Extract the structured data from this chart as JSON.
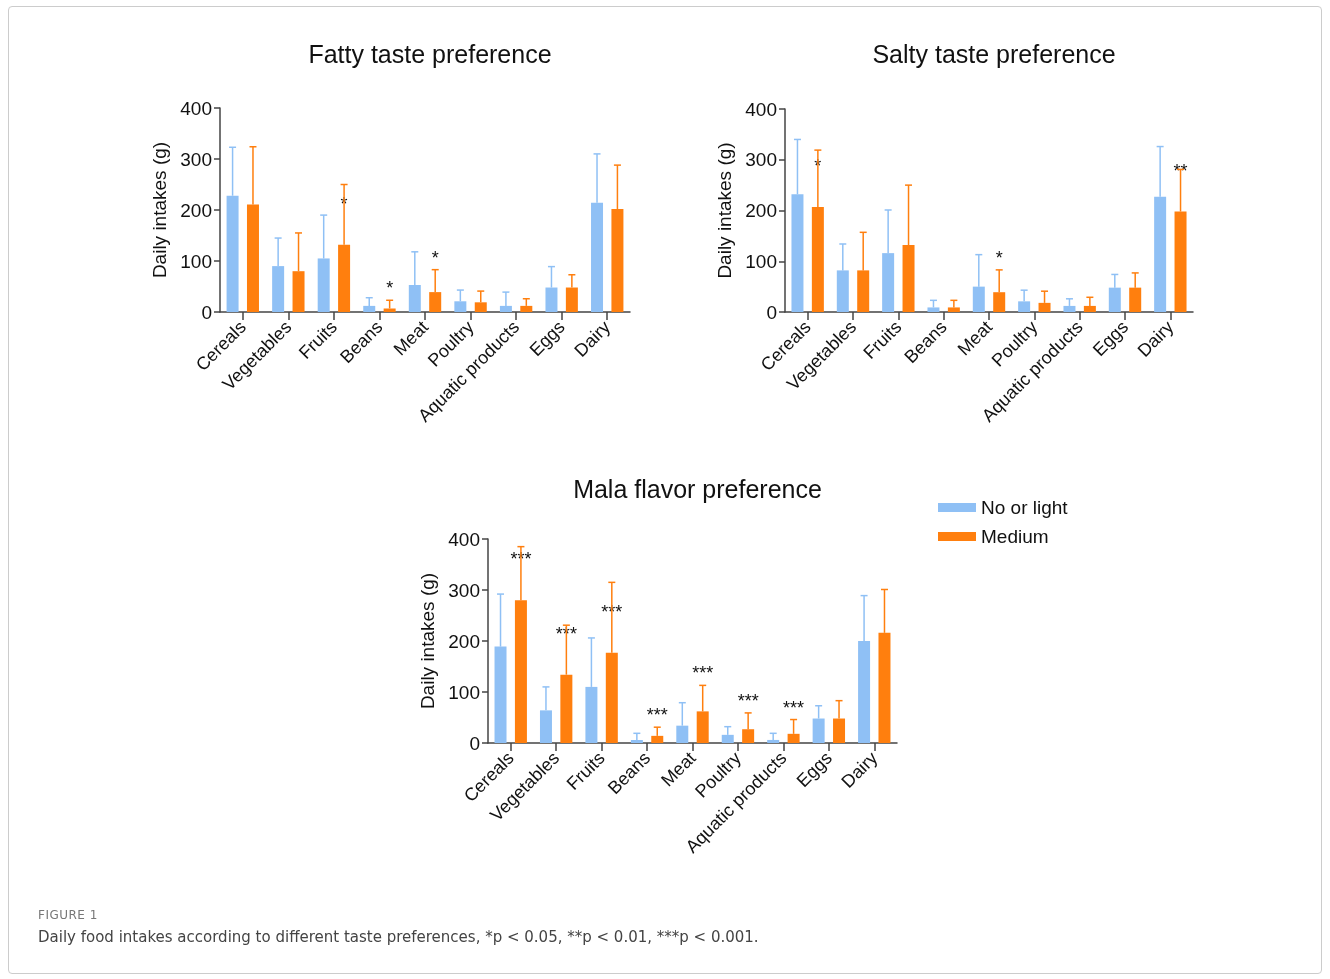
{
  "chart_data": [
    {
      "type": "bar",
      "title": "Fatty taste preference",
      "ylabel": "Daily intakes (g)",
      "categories": [
        "Cereals",
        "Vegetables",
        "Fruits",
        "Beans",
        "Meat",
        "Poultry",
        "Aquatic products",
        "Eggs",
        "Dairy"
      ],
      "ylim": [
        0,
        400
      ],
      "yticks": [
        0,
        100,
        200,
        300,
        400
      ],
      "grid": false,
      "legend": false,
      "series": [
        {
          "color": "#8fc0f5",
          "values": [
            228,
            90,
            105,
            12,
            53,
            21,
            12,
            48,
            214
          ],
          "errors": [
            [
              228,
              323
            ],
            [
              90,
              145
            ],
            [
              105,
              190
            ],
            [
              12,
              28
            ],
            [
              53,
              118
            ],
            [
              21,
              43
            ],
            [
              12,
              39
            ],
            [
              48,
              89
            ],
            [
              214,
              310
            ]
          ]
        },
        {
          "color": "#ff7f0e",
          "values": [
            211,
            80,
            132,
            7,
            39,
            19,
            12,
            48,
            202
          ],
          "errors": [
            [
              211,
              324
            ],
            [
              80,
              155
            ],
            [
              132,
              250
            ],
            [
              7,
              23
            ],
            [
              39,
              83
            ],
            [
              19,
              41
            ],
            [
              12,
              26
            ],
            [
              48,
              73
            ],
            [
              202,
              288
            ]
          ],
          "value_labels": [
            null,
            null,
            "*",
            "*",
            "*",
            null,
            null,
            null,
            null
          ]
        }
      ]
    },
    {
      "type": "bar",
      "title": "Salty taste preference",
      "ylabel": "Daily intakes (g)",
      "categories": [
        "Cereals",
        "Vegetables",
        "Fruits",
        "Beans",
        "Meat",
        "Poultry",
        "Aquatic products",
        "Eggs",
        "Dairy"
      ],
      "ylim": [
        0,
        400
      ],
      "yticks": [
        0,
        100,
        200,
        300,
        400
      ],
      "grid": false,
      "legend": false,
      "series": [
        {
          "color": "#8fc0f5",
          "values": [
            232,
            82,
            116,
            9,
            50,
            21,
            12,
            48,
            227
          ],
          "errors": [
            [
              232,
              340
            ],
            [
              82,
              134
            ],
            [
              116,
              201
            ],
            [
              9,
              23
            ],
            [
              50,
              113
            ],
            [
              21,
              43
            ],
            [
              12,
              26
            ],
            [
              48,
              74
            ],
            [
              227,
              326
            ]
          ]
        },
        {
          "color": "#ff7f0e",
          "values": [
            207,
            82,
            132,
            9,
            39,
            18,
            12,
            48,
            198
          ],
          "errors": [
            [
              207,
              319
            ],
            [
              82,
              157
            ],
            [
              132,
              250
            ],
            [
              9,
              23
            ],
            [
              39,
              83
            ],
            [
              18,
              41
            ],
            [
              12,
              29
            ],
            [
              48,
              77
            ],
            [
              198,
              281
            ]
          ],
          "value_labels": [
            "*",
            null,
            null,
            null,
            "*",
            null,
            null,
            null,
            "**"
          ]
        }
      ]
    },
    {
      "type": "bar",
      "title": "Mala flavor preference",
      "ylabel": "Daily intakes (g)",
      "categories": [
        "Cereals",
        "Vegetables",
        "Fruits",
        "Beans",
        "Meat",
        "Poultry",
        "Aquatic products",
        "Eggs",
        "Dairy"
      ],
      "ylim": [
        0,
        400
      ],
      "yticks": [
        0,
        100,
        200,
        300,
        400
      ],
      "grid": false,
      "legend": "right",
      "series": [
        {
          "name": "No or light",
          "color": "#8fc0f5",
          "values": [
            189,
            64,
            110,
            6,
            34,
            16,
            6,
            48,
            200
          ],
          "errors": [
            [
              189,
              292
            ],
            [
              64,
              110
            ],
            [
              110,
              206
            ],
            [
              6,
              19
            ],
            [
              34,
              79
            ],
            [
              16,
              32
            ],
            [
              6,
              19
            ],
            [
              48,
              73
            ],
            [
              200,
              289
            ]
          ]
        },
        {
          "name": "Medium",
          "color": "#ff7f0e",
          "values": [
            280,
            134,
            177,
            14,
            62,
            27,
            18,
            48,
            216
          ],
          "errors": [
            [
              280,
              385
            ],
            [
              134,
              231
            ],
            [
              177,
              315
            ],
            [
              14,
              31
            ],
            [
              62,
              113
            ],
            [
              27,
              59
            ],
            [
              18,
              46
            ],
            [
              48,
              83
            ],
            [
              216,
              301
            ]
          ],
          "value_labels": [
            "***",
            "***",
            "***",
            "***",
            "***",
            "***",
            "***",
            null,
            null
          ]
        }
      ],
      "annotations": [
        "FIGURE 1",
        "Daily food intakes according to different taste preferences, *p < 0.05, **p < 0.01, ***p < 0.001."
      ]
    }
  ]
}
